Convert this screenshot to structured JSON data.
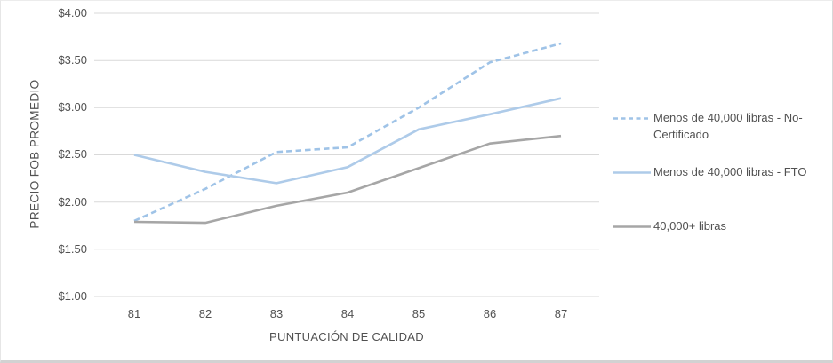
{
  "chart_data": {
    "type": "line",
    "title": "",
    "xlabel": "PUNTUACIÓN DE CALIDAD",
    "ylabel": "PRECIO FOB PROMEDIO",
    "categories": [
      "81",
      "82",
      "83",
      "84",
      "85",
      "86",
      "87"
    ],
    "y_ticks": [
      "$4.00",
      "$3.50",
      "$3.00",
      "$2.50",
      "$2.00",
      "$1.50",
      "$1.00"
    ],
    "ylim": [
      1.0,
      4.0
    ],
    "tick_step": 0.5,
    "grid": "horizontal",
    "legend_position": "right",
    "gridline_color": "#d9d9d9",
    "text_color": "#515151",
    "series": [
      {
        "name": "Menos de 40,000 libras - No-Certificado",
        "style": "dashed",
        "color": "#9fc3e7",
        "values": [
          1.8,
          2.14,
          2.53,
          2.58,
          3.0,
          3.48,
          3.68
        ]
      },
      {
        "name": "Menos de 40,000 libras - FTO",
        "style": "solid",
        "color": "#aecbe9",
        "values": [
          2.5,
          2.32,
          2.2,
          2.37,
          2.77,
          2.93,
          3.1
        ]
      },
      {
        "name": "40,000+ libras",
        "style": "solid",
        "color": "#a6a6a6",
        "values": [
          1.79,
          1.78,
          1.96,
          2.1,
          2.36,
          2.62,
          2.7
        ]
      }
    ]
  }
}
